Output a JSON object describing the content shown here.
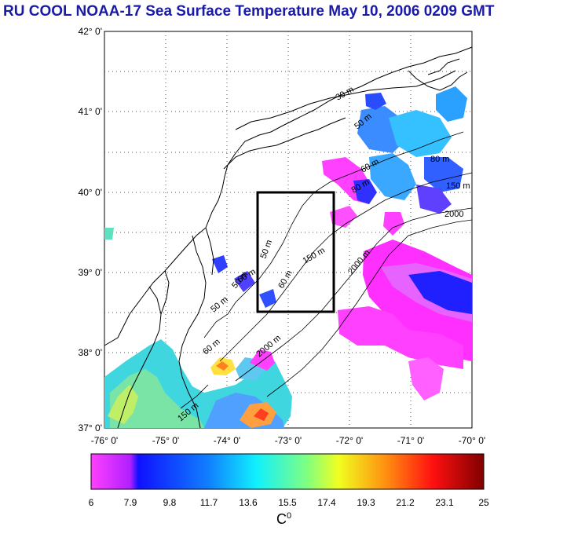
{
  "title": "RU COOL  NOAA-17 Sea Surface Temperature May 10, 2006 0209 GMT",
  "lat_ticks": [
    "42° 0'",
    "41° 0'",
    "40° 0'",
    "39° 0'",
    "38° 0'",
    "37° 0'"
  ],
  "lon_ticks": [
    "-76° 0'",
    "-75° 0'",
    "-74° 0'",
    "-73° 0'",
    "-72° 0'",
    "-71° 0'",
    "-70° 0'"
  ],
  "contour_labels": [
    "30 m",
    "50 m",
    "60 m",
    "80 m",
    "150 m",
    "2000",
    "50 m",
    "60 m",
    "150 m",
    "2000 m",
    "50 m",
    "50 m",
    "60 m",
    "80 m",
    "2000 m",
    "150 m",
    "60 m"
  ],
  "colorbar": {
    "ticks": [
      "6",
      "7.9",
      "9.8",
      "11.7",
      "13.6",
      "15.5",
      "17.4",
      "19.3",
      "21.2",
      "23.1",
      "25"
    ],
    "unit": "C",
    "unit_sup": "0"
  }
}
